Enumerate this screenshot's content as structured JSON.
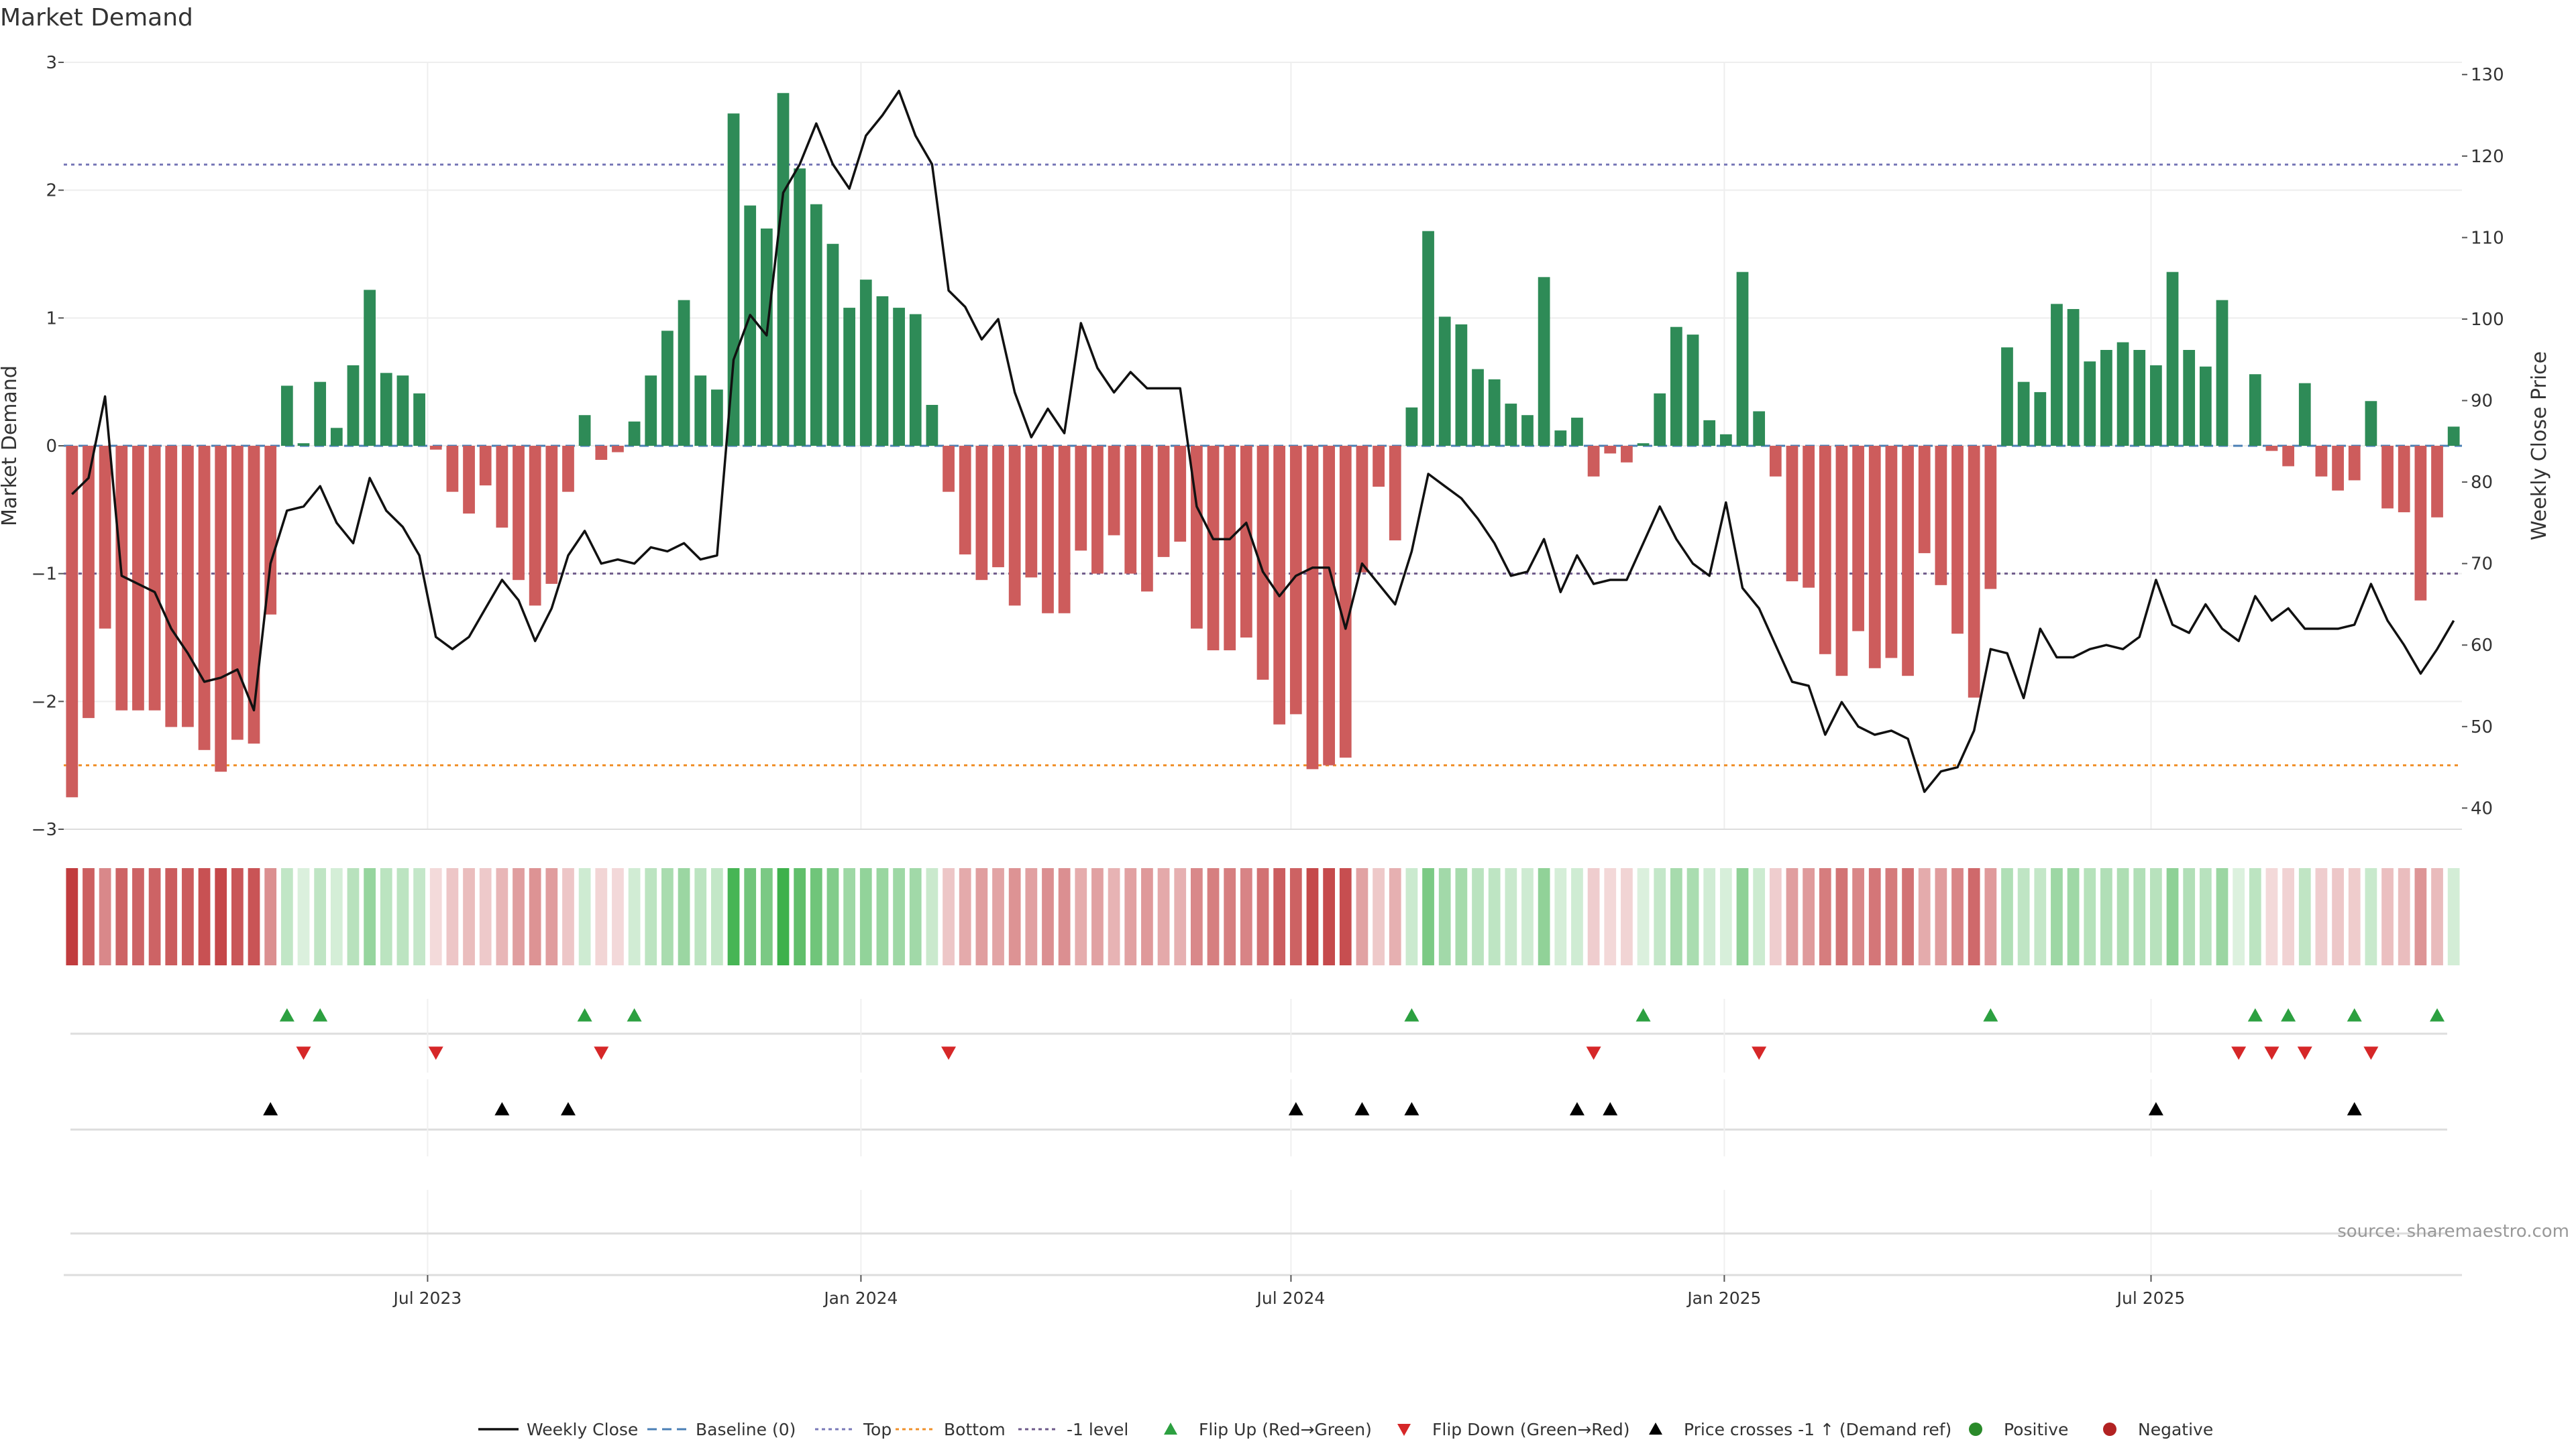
{
  "chart_data": {
    "type": "bar",
    "title": "Market Demand",
    "ylabel": "Market Demand",
    "y2label": "Weekly Close Price",
    "ylim": [
      -3,
      3
    ],
    "y2lim": [
      37.4,
      131.5
    ],
    "yticks": [
      "3",
      "2",
      "1",
      "0",
      "−1",
      "−2",
      "−3"
    ],
    "y2ticks": [
      "130",
      "120",
      "110",
      "100",
      "90",
      "80",
      "70",
      "60",
      "50",
      "40"
    ],
    "xticks": [
      {
        "label": "Jul 2023",
        "week": 22
      },
      {
        "label": "Jan 2024",
        "week": 48.2
      },
      {
        "label": "Jul 2024",
        "week": 74.2
      },
      {
        "label": "Jan 2025",
        "week": 100.4
      },
      {
        "label": "Jul 2025",
        "week": 126.2
      }
    ],
    "reference_lines": {
      "baseline": 0,
      "top": 2.2,
      "bottom": -2.5,
      "minus_one": -1
    },
    "demand": [
      -2.75,
      -2.13,
      -1.43,
      -2.07,
      -2.07,
      -2.07,
      -2.2,
      -2.2,
      -2.38,
      -2.55,
      -2.3,
      -2.33,
      -1.32,
      0.47,
      0.02,
      0.5,
      0.14,
      0.63,
      1.22,
      0.57,
      0.55,
      0.41,
      -0.03,
      -0.36,
      -0.53,
      -0.31,
      -0.64,
      -1.05,
      -1.25,
      -1.08,
      -0.36,
      0.24,
      -0.11,
      -0.05,
      0.19,
      0.55,
      0.9,
      1.14,
      0.55,
      0.44,
      2.6,
      1.88,
      1.7,
      2.76,
      2.17,
      1.89,
      1.58,
      1.08,
      1.3,
      1.17,
      1.08,
      1.03,
      0.32,
      -0.36,
      -0.85,
      -1.05,
      -0.95,
      -1.25,
      -1.03,
      -1.31,
      -1.31,
      -0.82,
      -1.0,
      -0.7,
      -1.0,
      -1.14,
      -0.87,
      -0.75,
      -1.43,
      -1.6,
      -1.6,
      -1.5,
      -1.83,
      -2.18,
      -2.1,
      -2.53,
      -2.5,
      -2.44,
      -0.99,
      -0.32,
      -0.74,
      0.3,
      1.68,
      1.01,
      0.95,
      0.6,
      0.52,
      0.33,
      0.24,
      1.32,
      0.12,
      0.22,
      -0.24,
      -0.06,
      -0.13,
      0.02,
      0.41,
      0.93,
      0.87,
      0.2,
      0.09,
      1.36,
      0.27,
      -0.24,
      -1.06,
      -1.11,
      -1.63,
      -1.8,
      -1.45,
      -1.74,
      -1.66,
      -1.8,
      -0.84,
      -1.09,
      -1.47,
      -1.97,
      -1.12,
      0.77,
      0.5,
      0.42,
      1.11,
      1.07,
      0.66,
      0.75,
      0.81,
      0.75,
      0.63,
      1.36,
      0.75,
      0.62,
      1.14,
      0,
      0.56,
      -0.04,
      -0.16,
      0.49,
      -0.24,
      -0.35,
      -0.27,
      0.35,
      -0.49,
      -0.52,
      -1.21,
      -0.56,
      0.15
    ],
    "price": [
      78.5,
      80.5,
      90.5,
      68.5,
      67.5,
      66.5,
      62,
      59,
      55.5,
      56,
      57,
      52,
      70,
      76.5,
      77,
      79.5,
      75,
      72.5,
      80.5,
      76.5,
      74.5,
      71,
      61,
      59.5,
      61,
      64.5,
      68,
      65.5,
      60.5,
      64.5,
      71,
      74,
      70,
      70.5,
      70,
      72,
      71.5,
      72.5,
      70.5,
      71,
      95,
      100.5,
      98,
      115.5,
      119,
      124,
      119,
      116,
      122.5,
      125,
      128,
      122.5,
      119,
      103.5,
      101.5,
      97.5,
      100,
      91,
      85.5,
      89,
      86,
      99.5,
      94,
      91,
      93.5,
      91.5,
      91.5,
      91.5,
      77,
      73,
      73,
      75,
      69,
      66,
      68.5,
      69.5,
      69.5,
      62,
      70,
      67.5,
      65,
      71.5,
      81,
      79.5,
      78,
      75.5,
      72.5,
      68.5,
      69,
      73,
      66.5,
      71,
      67.5,
      68,
      68,
      72.5,
      77,
      73,
      70,
      68.5,
      77.5,
      67,
      64.5,
      60,
      55.5,
      55,
      49,
      53,
      50,
      49,
      49.5,
      48.5,
      42,
      44.5,
      45,
      49.5,
      59.5,
      59,
      53.5,
      62,
      58.5,
      58.5,
      59.5,
      60,
      59.5,
      61,
      68,
      62.5,
      61.5,
      65,
      62,
      60.5,
      66,
      63,
      64.5,
      62,
      62,
      62,
      62.5,
      67.5,
      63,
      60,
      56.5,
      59.5,
      63
    ],
    "flip_up_weeks": [
      13,
      15,
      31,
      34,
      81,
      95,
      116,
      132,
      134,
      138,
      143
    ],
    "flip_down_weeks": [
      14,
      22,
      32,
      53,
      92,
      102,
      131,
      133,
      135,
      139
    ],
    "cross_weeks": [
      12,
      26,
      30,
      74,
      78,
      81,
      91,
      93,
      126,
      138
    ],
    "signals": [
      {
        "row": "flips",
        "type": "flip_up",
        "weeks": [
          13,
          15,
          31,
          34,
          81,
          95,
          116,
          132,
          134,
          138,
          143
        ]
      },
      {
        "row": "flips",
        "type": "flip_down",
        "weeks": [
          14,
          22,
          32,
          53,
          92,
          102,
          131,
          133,
          135,
          139
        ]
      },
      {
        "row": "crosses",
        "type": "price_crosses_minus_one_up",
        "weeks": [
          12,
          26,
          30,
          74,
          78,
          81,
          91,
          93,
          126,
          138
        ]
      }
    ],
    "legend_position": "bottom-center",
    "legend": [
      {
        "label": "Weekly Close",
        "kind": "line",
        "color": "#111111"
      },
      {
        "label": "Baseline (0)",
        "kind": "dash",
        "color": "#4a7fb5"
      },
      {
        "label": "Top",
        "kind": "dot",
        "color": "#7a7ab8"
      },
      {
        "label": "Bottom",
        "kind": "dot",
        "color": "#f0902a"
      },
      {
        "label": "-1 level",
        "kind": "dot",
        "color": "#6e5a8a"
      },
      {
        "label": "Flip Up (Red→Green)",
        "kind": "tri-up",
        "color": "#2ca040"
      },
      {
        "label": "Flip Down (Green→Red)",
        "kind": "tri-down",
        "color": "#d62728"
      },
      {
        "label": "Price crosses -1 ↑ (Demand ref)",
        "kind": "tri-up",
        "color": "#000000"
      },
      {
        "label": "Positive",
        "kind": "dot-marker",
        "color": "#2a8a2a"
      },
      {
        "label": "Negative",
        "kind": "dot-marker",
        "color": "#b22222"
      }
    ],
    "source": "source: sharemaestro.com"
  },
  "colors": {
    "positive_bar": "#2e8b57",
    "negative_bar": "#cd5c5c",
    "heat_positive": "#3cb04a",
    "heat_negative": "#c0393b",
    "grid": "#eeeeee",
    "price_line": "#111111"
  }
}
